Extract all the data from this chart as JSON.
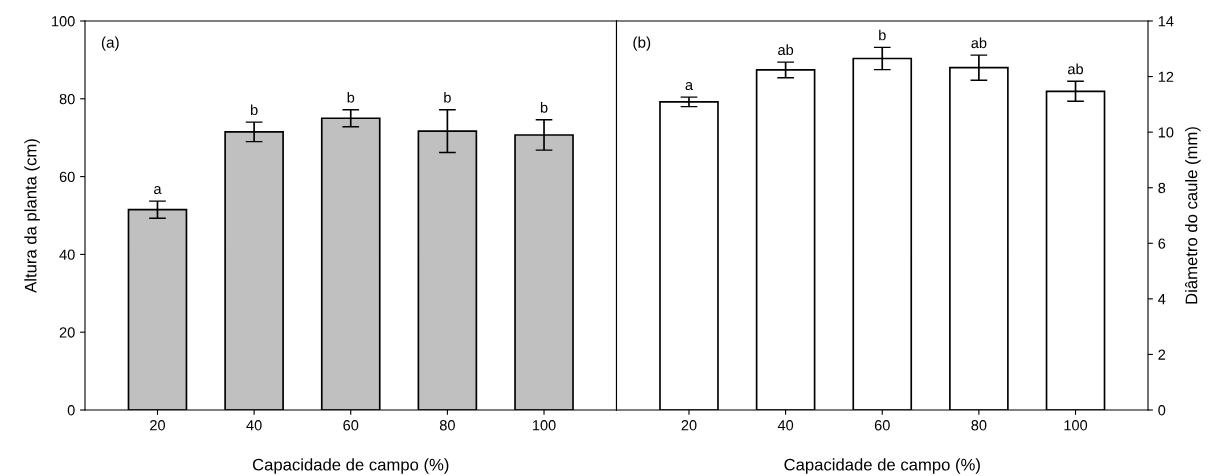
{
  "chart_data": [
    {
      "type": "bar",
      "categories": [
        "20",
        "40",
        "60",
        "80",
        "100"
      ],
      "xlabel": "Capacidade de campo (%)",
      "ylabel": "Altura da planta (cm)",
      "series": [
        {
          "color": "#c0c0c0",
          "values": [
            51.5,
            71.5,
            75.0,
            71.7,
            70.7
          ],
          "errors": [
            2.2,
            2.5,
            2.2,
            5.5,
            3.9
          ]
        }
      ],
      "ylim": [
        0,
        100
      ],
      "yticks": [
        0,
        20,
        40,
        60,
        80,
        100
      ],
      "annotations": [
        "(a)",
        {
          "text": "a",
          "x": "20",
          "y": 53.7
        },
        {
          "text": "b",
          "x": "40",
          "y": 74.0
        },
        {
          "text": "b",
          "x": "60",
          "y": 77.2
        },
        {
          "text": "b",
          "x": "80",
          "y": 77.2
        },
        {
          "text": "b",
          "x": "100",
          "y": 74.6
        }
      ]
    },
    {
      "type": "bar",
      "categories": [
        "20",
        "40",
        "60",
        "80",
        "100"
      ],
      "xlabel": "Capacidade de campo (%)",
      "y2label": "Diâmetro do caule (mm)",
      "series": [
        {
          "color": "#ffffff",
          "axis": "y2",
          "values": [
            11.09,
            12.24,
            12.65,
            12.32,
            11.47
          ],
          "errors": [
            0.17,
            0.28,
            0.4,
            0.45,
            0.36
          ]
        }
      ],
      "y2lim": [
        0,
        14
      ],
      "y2ticks": [
        0,
        2,
        4,
        6,
        8,
        10,
        12,
        14
      ],
      "annotations": [
        "(b)",
        "a",
        "ab",
        "b",
        "ab",
        "ab"
      ]
    }
  ]
}
